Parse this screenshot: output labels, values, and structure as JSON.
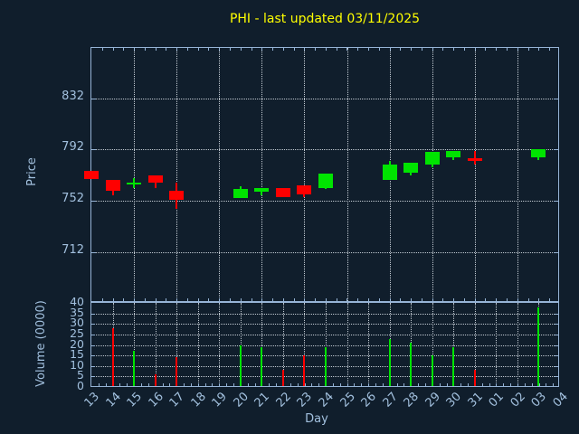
{
  "title": "PHI - last updated 03/11/2025",
  "colors": {
    "background": "#101e2c",
    "axis": "#96b4d6",
    "grid": "#c2cad2",
    "tick_label": "#a2c0de",
    "title": "#ffff00",
    "up": "#00e400",
    "down": "#ff0000"
  },
  "price_axis": {
    "label": "Price",
    "tick_labels": [
      "832",
      "792",
      "752",
      "712"
    ],
    "tick_values": [
      832,
      792,
      752,
      712
    ]
  },
  "volume_axis": {
    "label": "Volume (0000)",
    "tick_labels": [
      "40",
      "35",
      "30",
      "25",
      "20",
      "15",
      "10",
      "5",
      "0"
    ],
    "tick_values": [
      40,
      35,
      30,
      25,
      20,
      15,
      10,
      5,
      0
    ]
  },
  "x_axis": {
    "label": "Day",
    "tick_labels": [
      "13",
      "14",
      "15",
      "16",
      "17",
      "18",
      "19",
      "20",
      "21",
      "22",
      "23",
      "24",
      "25",
      "26",
      "27",
      "28",
      "29",
      "30",
      "31",
      "01",
      "02",
      "03",
      "04"
    ]
  },
  "chart_data": {
    "type": "candlestick",
    "subcharts": [
      "price-candles",
      "volume-bars"
    ],
    "x": [
      "13",
      "14",
      "15",
      "16",
      "17",
      "18",
      "19",
      "20",
      "21",
      "22",
      "23",
      "24",
      "25",
      "26",
      "27",
      "28",
      "29",
      "30",
      "31",
      "01",
      "02",
      "03",
      "04"
    ],
    "price_range_ticks": [
      712,
      832
    ],
    "volume_range": [
      0,
      40
    ],
    "grid": "dotted",
    "candles": [
      {
        "day": "13",
        "open": 775,
        "high": 775,
        "low": 769,
        "close": 769,
        "volume": 0
      },
      {
        "day": "14",
        "open": 768,
        "high": 768,
        "low": 756,
        "close": 760,
        "volume": 28
      },
      {
        "day": "15",
        "open": 765,
        "high": 770,
        "low": 762,
        "close": 766,
        "volume": 17
      },
      {
        "day": "16",
        "open": 772,
        "high": 772,
        "low": 762,
        "close": 766,
        "volume": 6
      },
      {
        "day": "17",
        "open": 760,
        "high": 766,
        "low": 746,
        "close": 753,
        "volume": 14
      },
      {
        "day": "20",
        "open": 754,
        "high": 763,
        "low": 754,
        "close": 761,
        "volume": 20
      },
      {
        "day": "21",
        "open": 759,
        "high": 762,
        "low": 756,
        "close": 762,
        "volume": 19
      },
      {
        "day": "22",
        "open": 762,
        "high": 762,
        "low": 755,
        "close": 755,
        "volume": 8
      },
      {
        "day": "23",
        "open": 764,
        "high": 764,
        "low": 755,
        "close": 757,
        "volume": 15
      },
      {
        "day": "24",
        "open": 762,
        "high": 773,
        "low": 761,
        "close": 773,
        "volume": 19
      },
      {
        "day": "27",
        "open": 768,
        "high": 783,
        "low": 768,
        "close": 780,
        "volume": 23
      },
      {
        "day": "28",
        "open": 774,
        "high": 782,
        "low": 772,
        "close": 782,
        "volume": 21
      },
      {
        "day": "29",
        "open": 780,
        "high": 790,
        "low": 778,
        "close": 790,
        "volume": 15
      },
      {
        "day": "30",
        "open": 786,
        "high": 791,
        "low": 784,
        "close": 791,
        "volume": 19
      },
      {
        "day": "31",
        "open": 785,
        "high": 791,
        "low": 780,
        "close": 783,
        "volume": 8
      },
      {
        "day": "03",
        "open": 786,
        "high": 792,
        "low": 784,
        "close": 792,
        "volume": 38
      }
    ]
  }
}
